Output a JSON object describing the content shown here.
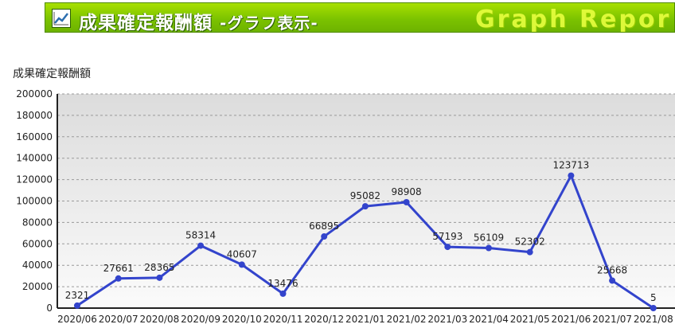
{
  "banner": {
    "title": "成果確定報酬額",
    "subtitle": "-グラフ表示-",
    "decoration": "Graph Repor"
  },
  "chart_label": "成果確定報酬額",
  "chart_data": {
    "type": "line",
    "categories": [
      "2020/06",
      "2020/07",
      "2020/08",
      "2020/09",
      "2020/10",
      "2020/11",
      "2020/12",
      "2021/01",
      "2021/02",
      "2021/03",
      "2021/04",
      "2021/05",
      "2021/06",
      "2021/07",
      "2021/08"
    ],
    "values": [
      2321,
      27661,
      28365,
      58314,
      40607,
      13476,
      66895,
      95082,
      98908,
      57193,
      56109,
      52302,
      123713,
      25668,
      5
    ],
    "yticks": [
      0,
      20000,
      40000,
      60000,
      80000,
      100000,
      120000,
      140000,
      160000,
      180000,
      200000
    ],
    "ylim": [
      0,
      200000
    ],
    "grid": true,
    "line_color": "#3344cc"
  }
}
